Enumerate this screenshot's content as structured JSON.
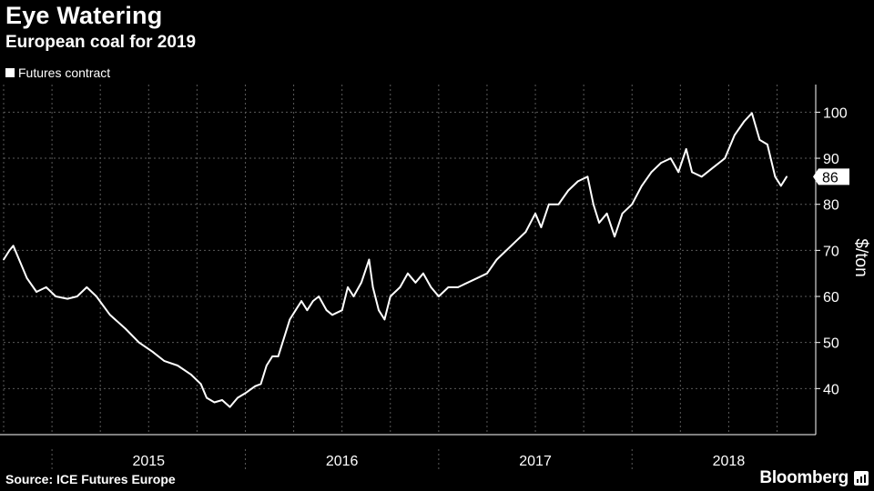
{
  "header": {
    "title": "Eye Watering",
    "subtitle": "European coal for 2019"
  },
  "footer": {
    "source": "Source: ICE Futures Europe",
    "brand": "Bloomberg"
  },
  "chart_data": {
    "type": "line",
    "title": "Eye Watering",
    "subtitle": "European coal for 2019",
    "ylabel": "$/ton",
    "xlabel": "",
    "ylim": [
      30,
      106
    ],
    "yticks": [
      40,
      50,
      60,
      70,
      80,
      90,
      100
    ],
    "x_domain": [
      2014.75,
      2018.95
    ],
    "year_labels": [
      {
        "label": "2015",
        "at": 2015.5
      },
      {
        "label": "2016",
        "at": 2016.5
      },
      {
        "label": "2017",
        "at": 2017.5
      },
      {
        "label": "2018",
        "at": 2018.5
      }
    ],
    "year_boundaries": [
      2015.0,
      2016.0,
      2017.0,
      2018.0
    ],
    "grid": true,
    "legend_position": "top-left",
    "last_value_label": "86",
    "colors": {
      "background": "#000000",
      "line": "#ffffff",
      "grid": "#5a5a5a"
    },
    "series": [
      {
        "name": "Futures contract",
        "points": [
          [
            2014.75,
            68
          ],
          [
            2014.78,
            70
          ],
          [
            2014.8,
            71
          ],
          [
            2014.83,
            68
          ],
          [
            2014.87,
            64
          ],
          [
            2014.92,
            61
          ],
          [
            2014.97,
            62
          ],
          [
            2015.02,
            60
          ],
          [
            2015.08,
            59.5
          ],
          [
            2015.13,
            60
          ],
          [
            2015.18,
            62
          ],
          [
            2015.23,
            60
          ],
          [
            2015.3,
            56
          ],
          [
            2015.38,
            53
          ],
          [
            2015.45,
            50
          ],
          [
            2015.52,
            48
          ],
          [
            2015.58,
            46
          ],
          [
            2015.65,
            45
          ],
          [
            2015.72,
            43
          ],
          [
            2015.77,
            41
          ],
          [
            2015.8,
            38
          ],
          [
            2015.84,
            37
          ],
          [
            2015.88,
            37.5
          ],
          [
            2015.92,
            36
          ],
          [
            2015.96,
            38
          ],
          [
            2016.0,
            39
          ],
          [
            2016.05,
            40.5
          ],
          [
            2016.08,
            41
          ],
          [
            2016.11,
            45
          ],
          [
            2016.14,
            47
          ],
          [
            2016.17,
            47
          ],
          [
            2016.2,
            51
          ],
          [
            2016.23,
            55
          ],
          [
            2016.26,
            57
          ],
          [
            2016.29,
            59
          ],
          [
            2016.32,
            57
          ],
          [
            2016.35,
            59
          ],
          [
            2016.38,
            60
          ],
          [
            2016.42,
            57
          ],
          [
            2016.45,
            56
          ],
          [
            2016.5,
            57
          ],
          [
            2016.53,
            62
          ],
          [
            2016.56,
            60
          ],
          [
            2016.6,
            63
          ],
          [
            2016.64,
            68
          ],
          [
            2016.66,
            62
          ],
          [
            2016.69,
            57
          ],
          [
            2016.72,
            55
          ],
          [
            2016.75,
            60
          ],
          [
            2016.8,
            62
          ],
          [
            2016.84,
            65
          ],
          [
            2016.88,
            63
          ],
          [
            2016.92,
            65
          ],
          [
            2016.96,
            62
          ],
          [
            2017.0,
            60
          ],
          [
            2017.05,
            62
          ],
          [
            2017.1,
            62
          ],
          [
            2017.15,
            63
          ],
          [
            2017.2,
            64
          ],
          [
            2017.25,
            65
          ],
          [
            2017.3,
            68
          ],
          [
            2017.35,
            70
          ],
          [
            2017.4,
            72
          ],
          [
            2017.45,
            74
          ],
          [
            2017.5,
            78
          ],
          [
            2017.53,
            75
          ],
          [
            2017.57,
            80
          ],
          [
            2017.62,
            80
          ],
          [
            2017.67,
            83
          ],
          [
            2017.72,
            85
          ],
          [
            2017.77,
            86
          ],
          [
            2017.8,
            80
          ],
          [
            2017.83,
            76
          ],
          [
            2017.87,
            78
          ],
          [
            2017.91,
            73
          ],
          [
            2017.95,
            78
          ],
          [
            2018.0,
            80
          ],
          [
            2018.05,
            84
          ],
          [
            2018.1,
            87
          ],
          [
            2018.15,
            89
          ],
          [
            2018.2,
            90
          ],
          [
            2018.24,
            87
          ],
          [
            2018.28,
            92
          ],
          [
            2018.31,
            87
          ],
          [
            2018.36,
            86
          ],
          [
            2018.42,
            88
          ],
          [
            2018.48,
            90
          ],
          [
            2018.53,
            95
          ],
          [
            2018.58,
            98
          ],
          [
            2018.62,
            99.8
          ],
          [
            2018.66,
            94
          ],
          [
            2018.7,
            93
          ],
          [
            2018.74,
            86
          ],
          [
            2018.77,
            84
          ],
          [
            2018.8,
            86
          ]
        ]
      }
    ]
  }
}
